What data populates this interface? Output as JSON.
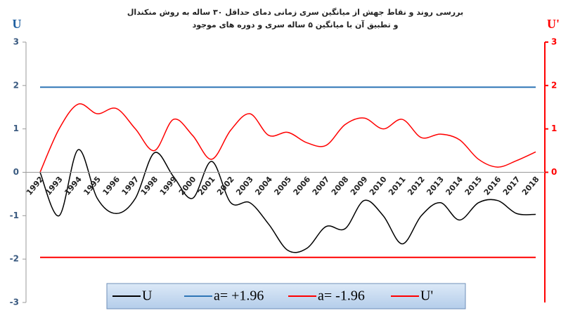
{
  "chart_data": {
    "type": "line",
    "title": "بررسی روند و نقاط جهش از میانگین سری زمانی دمای حداقل ۳۰ ساله به روش منکندال",
    "subtitle": "و تطبیق آن با میانگین ۵ ساله سری و دوره های موجود",
    "ylabel": "U",
    "y2label": "U'",
    "categories": [
      "1992",
      "1993",
      "1994",
      "1995",
      "1996",
      "1997",
      "1998",
      "1999",
      "2000",
      "2001",
      "2002",
      "2003",
      "2004",
      "2005",
      "2006",
      "2007",
      "2008",
      "2009",
      "2010",
      "2011",
      "2012",
      "2013",
      "2014",
      "2015",
      "2016",
      "2017",
      "2018"
    ],
    "ylim": [
      -3,
      3
    ],
    "yticks": [
      -3,
      -2,
      -1,
      0,
      1,
      2,
      3
    ],
    "y2lim": [
      -3,
      3
    ],
    "y2ticks": [
      0,
      1,
      2,
      3
    ],
    "series": [
      {
        "name": "U",
        "color": "#000000",
        "smooth": true,
        "values": [
          0,
          -1.0,
          0.52,
          -0.6,
          -0.95,
          -0.6,
          0.45,
          -0.1,
          -0.6,
          0.25,
          -0.7,
          -0.7,
          -1.2,
          -1.8,
          -1.75,
          -1.25,
          -1.3,
          -0.65,
          -1.0,
          -1.65,
          -1.0,
          -0.7,
          -1.1,
          -0.7,
          -0.65,
          -0.95,
          -0.97
        ]
      },
      {
        "name": "a= +1.96",
        "color": "#2e75b6",
        "smooth": false,
        "values": [
          1.96,
          1.96,
          1.96,
          1.96,
          1.96,
          1.96,
          1.96,
          1.96,
          1.96,
          1.96,
          1.96,
          1.96,
          1.96,
          1.96,
          1.96,
          1.96,
          1.96,
          1.96,
          1.96,
          1.96,
          1.96,
          1.96,
          1.96,
          1.96,
          1.96,
          1.96,
          1.96
        ]
      },
      {
        "name": "a= -1.96",
        "color": "#ff0000",
        "smooth": false,
        "values": [
          -1.96,
          -1.96,
          -1.96,
          -1.96,
          -1.96,
          -1.96,
          -1.96,
          -1.96,
          -1.96,
          -1.96,
          -1.96,
          -1.96,
          -1.96,
          -1.96,
          -1.96,
          -1.96,
          -1.96,
          -1.96,
          -1.96,
          -1.96,
          -1.96,
          -1.96,
          -1.96,
          -1.96,
          -1.96,
          -1.96,
          -1.96
        ]
      },
      {
        "name": "U'",
        "color": "#ff0000",
        "smooth": true,
        "axis": "y2",
        "values": [
          0,
          1.0,
          1.57,
          1.35,
          1.47,
          1.0,
          0.5,
          1.22,
          0.85,
          0.3,
          0.97,
          1.35,
          0.85,
          0.92,
          0.68,
          0.62,
          1.1,
          1.25,
          1.0,
          1.22,
          0.8,
          0.88,
          0.75,
          0.3,
          0.12,
          0.27,
          0.47
        ]
      }
    ]
  }
}
